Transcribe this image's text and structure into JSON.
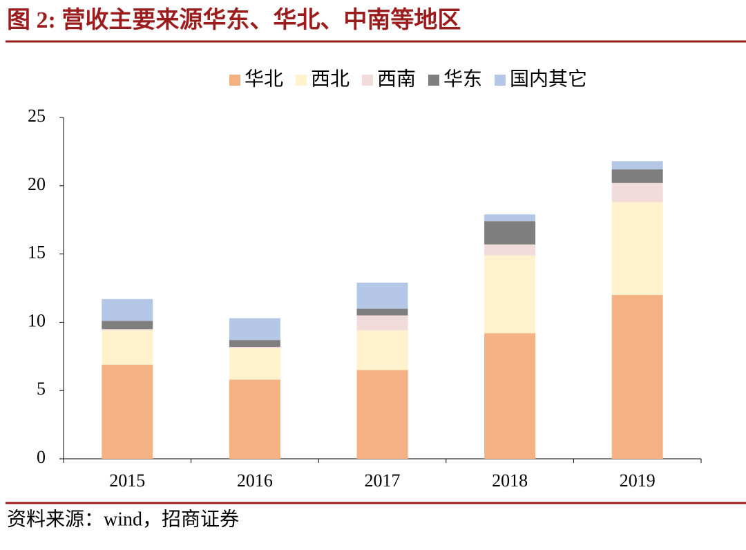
{
  "header": {
    "title": "图 2: 营收主要来源华东、华北、中南等地区"
  },
  "chart_data": {
    "type": "stacked-bar",
    "categories": [
      "2015",
      "2016",
      "2017",
      "2018",
      "2019"
    ],
    "series": [
      {
        "name": "华北",
        "color": "#f4b183",
        "values": [
          6.9,
          5.8,
          6.5,
          9.2,
          12.0
        ]
      },
      {
        "name": "西北",
        "color": "#fff2cc",
        "values": [
          2.5,
          2.3,
          2.9,
          5.7,
          6.8
        ]
      },
      {
        "name": "西南",
        "color": "#f2dcdb",
        "values": [
          0.1,
          0.1,
          1.1,
          0.8,
          1.4
        ]
      },
      {
        "name": "华东",
        "color": "#7f7f7f",
        "values": [
          0.6,
          0.5,
          0.5,
          1.7,
          1.0
        ]
      },
      {
        "name": "国内其它",
        "color": "#b4c7e7",
        "values": [
          1.6,
          1.6,
          1.9,
          0.5,
          0.6
        ]
      }
    ],
    "ylim": [
      0,
      25
    ],
    "yticks": [
      0,
      5,
      10,
      15,
      20,
      25
    ],
    "legend": "top"
  },
  "footer": {
    "source": "资料来源：wind，招商证券"
  }
}
